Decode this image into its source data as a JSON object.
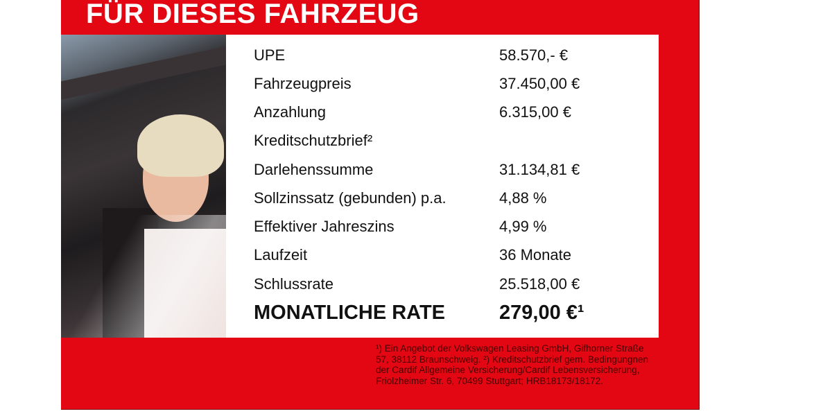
{
  "title": "FÜR DIESES FAHRZEUG",
  "rows": [
    {
      "label": "UPE",
      "value": "58.570,- €"
    },
    {
      "label": "Fahrzeugpreis",
      "value": "37.450,00 €"
    },
    {
      "label": "Anzahlung",
      "value": "6.315,00 €"
    },
    {
      "label": "Kreditschutzbrief²",
      "value": ""
    },
    {
      "label": "Darlehenssumme",
      "value": "31.134,81 €"
    },
    {
      "label": "Sollzinssatz (gebunden) p.a.",
      "value": "4,88 %"
    },
    {
      "label": "Effektiver Jahreszins",
      "value": "4,99 %"
    },
    {
      "label": "Laufzeit",
      "value": "36 Monate"
    },
    {
      "label": "Schlussrate",
      "value": "25.518,00 €"
    }
  ],
  "monthly": {
    "label": "MONATLICHE RATE",
    "value": "279,00 €¹"
  },
  "footnote": "¹) Ein Angebot der Volkswagen Leasing GmbH, Gifhorner Straße 57, 38112 Braunschweig. ²) Kreditschutzbrief gem. Bedingungnen der Cardif Allgemeine Versicherung/Cardif Lebensversicherung, Friolzheimer Str. 6, 70499 Stuttgart; HRB18173/18172.",
  "colors": {
    "brand_red": "#e30613"
  }
}
